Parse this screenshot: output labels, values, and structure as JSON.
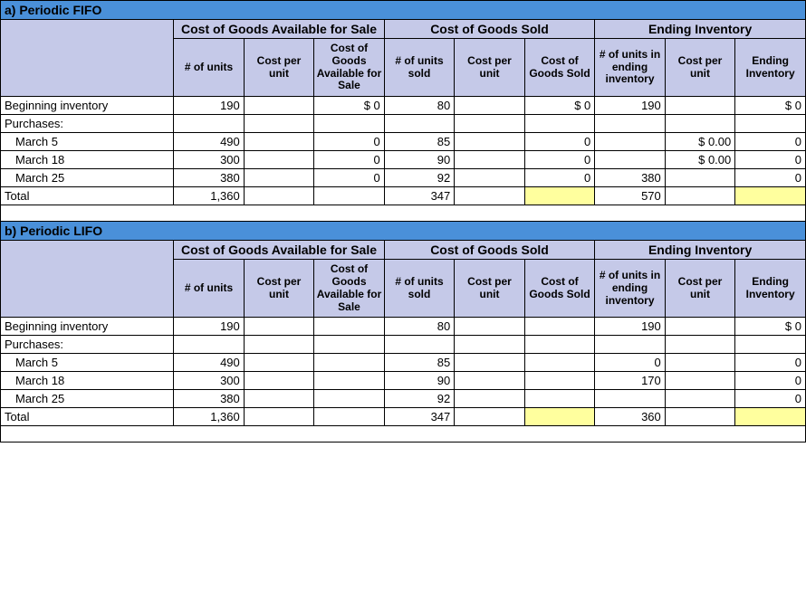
{
  "colors": {
    "title_bg": "#4a90d9",
    "header_bg": "#c5c9e8",
    "highlight_bg": "#ffff9e",
    "border": "#000000"
  },
  "sections": [
    "Cost of Goods Available for Sale",
    "Cost of Goods Sold",
    "Ending Inventory"
  ],
  "col_headers": [
    "# of units",
    "Cost per unit",
    "Cost of Goods Available for Sale",
    "# of units sold",
    "Cost per unit",
    "Cost of Goods Sold",
    "# of units in ending inventory",
    "Cost per unit",
    "Ending Inventory"
  ],
  "fifo": {
    "title": "a) Periodic FIFO",
    "rows": [
      {
        "label": "Beginning inventory",
        "indent": false,
        "v": [
          "190",
          "",
          "$     0",
          "80",
          "",
          "$     0",
          "190",
          "",
          "$     0"
        ]
      },
      {
        "label": "Purchases:",
        "indent": false,
        "v": [
          "",
          "",
          "",
          "",
          "",
          "",
          "",
          "",
          ""
        ]
      },
      {
        "label": "March 5",
        "indent": true,
        "v": [
          "490",
          "",
          "0",
          "85",
          "",
          "0",
          "",
          "$ 0.00",
          "0"
        ]
      },
      {
        "label": "March 18",
        "indent": true,
        "v": [
          "300",
          "",
          "0",
          "90",
          "",
          "0",
          "",
          "$ 0.00",
          "0"
        ]
      },
      {
        "label": "March 25",
        "indent": true,
        "v": [
          "380",
          "",
          "0",
          "92",
          "",
          "0",
          "380",
          "",
          "0"
        ]
      },
      {
        "label": "Total",
        "indent": false,
        "total": true,
        "v": [
          "1,360",
          "",
          "",
          "347",
          "",
          "",
          "570",
          "",
          ""
        ],
        "hl": [
          false,
          false,
          false,
          false,
          false,
          true,
          false,
          false,
          true
        ]
      }
    ]
  },
  "lifo": {
    "title": "b) Periodic LIFO",
    "rows": [
      {
        "label": "Beginning inventory",
        "indent": false,
        "v": [
          "190",
          "",
          "",
          "80",
          "",
          "",
          "190",
          "",
          "$     0"
        ]
      },
      {
        "label": "Purchases:",
        "indent": false,
        "v": [
          "",
          "",
          "",
          "",
          "",
          "",
          "",
          "",
          ""
        ]
      },
      {
        "label": "March 5",
        "indent": true,
        "v": [
          "490",
          "",
          "",
          "85",
          "",
          "",
          "0",
          "",
          "0"
        ]
      },
      {
        "label": "March 18",
        "indent": true,
        "v": [
          "300",
          "",
          "",
          "90",
          "",
          "",
          "170",
          "",
          "0"
        ]
      },
      {
        "label": "March 25",
        "indent": true,
        "v": [
          "380",
          "",
          "",
          "92",
          "",
          "",
          "",
          "",
          "0"
        ]
      },
      {
        "label": "Total",
        "indent": false,
        "total": true,
        "v": [
          "1,360",
          "",
          "",
          "347",
          "",
          "",
          "360",
          "",
          ""
        ],
        "hl": [
          false,
          false,
          false,
          false,
          false,
          true,
          false,
          false,
          true
        ]
      }
    ]
  }
}
